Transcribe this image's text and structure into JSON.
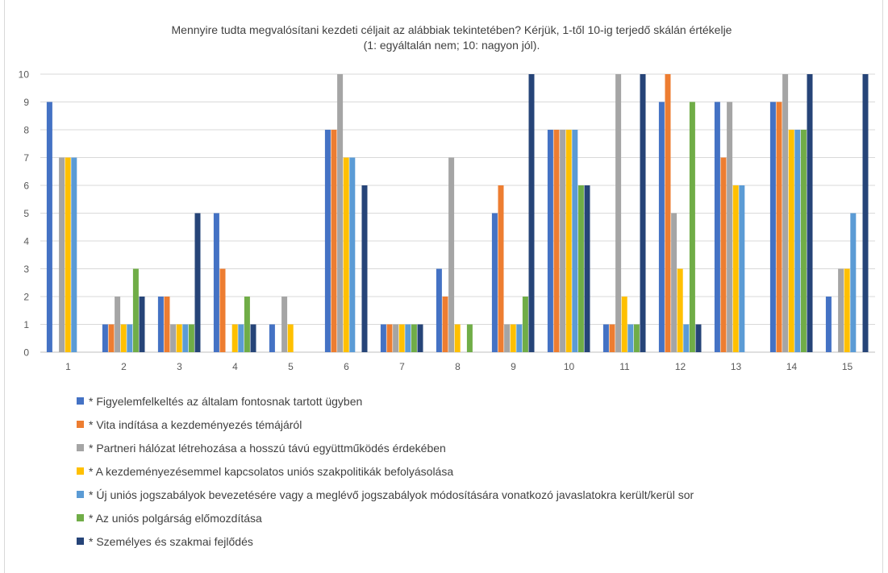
{
  "chart_data": {
    "type": "bar",
    "title_line1": "Mennyire tudta megvalósítani kezdeti céljait az alábbiak tekintetében? Kérjük, 1-től 10-ig terjedő skálán értékelje",
    "title_line2": "(1: egyáltalán nem; 10: nagyon jól).",
    "categories": [
      "1",
      "2",
      "3",
      "4",
      "5",
      "6",
      "7",
      "8",
      "9",
      "10",
      "11",
      "12",
      "13",
      "14",
      "15"
    ],
    "ylim": [
      0,
      10
    ],
    "yticks": [
      "0",
      "1",
      "2",
      "3",
      "4",
      "5",
      "6",
      "7",
      "8",
      "9",
      "10"
    ],
    "grid": true,
    "legend_position": "bottom",
    "series": [
      {
        "name": "* Figyelemfelkeltés az általam fontosnak tartott ügyben",
        "color": "#4472C4",
        "values": [
          9,
          1,
          2,
          5,
          1,
          8,
          1,
          3,
          5,
          8,
          1,
          9,
          9,
          9,
          2
        ]
      },
      {
        "name": "* Vita indítása a kezdeményezés témájáról",
        "color": "#ED7D31",
        "values": [
          0,
          1,
          2,
          3,
          0,
          8,
          1,
          2,
          6,
          8,
          1,
          10,
          7,
          9,
          0
        ]
      },
      {
        "name": "* Partneri hálózat létrehozása a hosszú távú együttműködés érdekében",
        "color": "#A5A5A5",
        "values": [
          7,
          2,
          1,
          0,
          2,
          10,
          1,
          7,
          1,
          8,
          10,
          5,
          9,
          10,
          3
        ]
      },
      {
        "name": "* A kezdeményezésemmel kapcsolatos uniós szakpolitikák befolyásolása",
        "color": "#FFC000",
        "values": [
          7,
          1,
          1,
          1,
          1,
          7,
          1,
          1,
          1,
          8,
          2,
          3,
          6,
          8,
          3
        ]
      },
      {
        "name": "* Új uniós jogszabályok bevezetésére vagy a meglévő jogszabályok módosítására vonatkozó javaslatokra került/kerül sor",
        "color": "#5B9BD5",
        "values": [
          7,
          1,
          1,
          1,
          0,
          7,
          1,
          0,
          1,
          8,
          1,
          1,
          6,
          8,
          5
        ]
      },
      {
        "name": "* Az uniós polgárság előmozdítása",
        "color": "#70AD47",
        "values": [
          0,
          3,
          1,
          2,
          0,
          0,
          1,
          1,
          2,
          6,
          1,
          9,
          0,
          8,
          0
        ]
      },
      {
        "name": "* Személyes és szakmai fejlődés",
        "color": "#264478",
        "values": [
          0,
          2,
          5,
          1,
          0,
          6,
          1,
          0,
          10,
          6,
          10,
          1,
          0,
          10,
          10
        ]
      }
    ]
  }
}
